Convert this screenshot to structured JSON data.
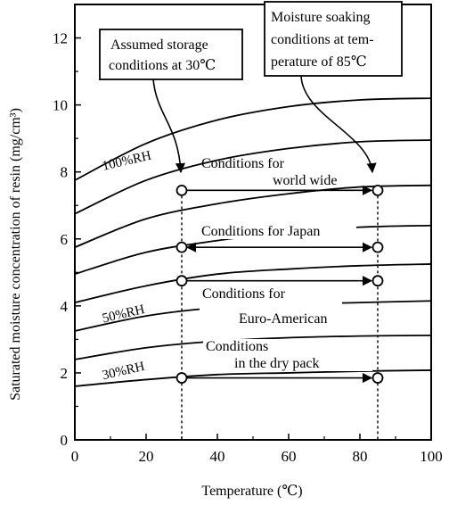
{
  "chart_data": {
    "type": "line",
    "title": "",
    "xlabel": "Temperature (℃)",
    "ylabel": "Saturated moisture concentration of resin (mg/cm³)",
    "xlim": [
      0,
      100
    ],
    "ylim": [
      0,
      13
    ],
    "xticks": [
      "0",
      "20",
      "40",
      "60",
      "80",
      "100"
    ],
    "yticks": [
      "0",
      "2",
      "4",
      "6",
      "8",
      "10",
      "12"
    ],
    "grid": false,
    "legend": "none",
    "x": [
      0,
      20,
      40,
      60,
      80,
      100
    ],
    "series": [
      {
        "name": "",
        "values": [
          7.75,
          8.85,
          9.55,
          9.95,
          10.15,
          10.2
        ]
      },
      {
        "name": "",
        "values": [
          6.75,
          7.75,
          8.35,
          8.7,
          8.9,
          8.95
        ]
      },
      {
        "name": "",
        "values": [
          5.75,
          6.6,
          7.05,
          7.35,
          7.55,
          7.6
        ]
      },
      {
        "name": "",
        "values": [
          4.95,
          5.6,
          5.95,
          6.2,
          6.35,
          6.4
        ]
      },
      {
        "name": "",
        "values": [
          4.1,
          4.6,
          4.95,
          5.1,
          5.2,
          5.25
        ]
      },
      {
        "name": "",
        "values": [
          3.25,
          3.7,
          3.95,
          4.05,
          4.1,
          4.15
        ]
      },
      {
        "name": "",
        "values": [
          2.4,
          2.75,
          2.95,
          3.05,
          3.1,
          3.12
        ]
      },
      {
        "name": "",
        "values": [
          1.6,
          1.8,
          1.95,
          2.0,
          2.05,
          2.08
        ]
      }
    ],
    "curve_labels": [
      {
        "text": "100%RH",
        "x": 8,
        "y": 8.05
      },
      {
        "text": "50%RH",
        "x": 8,
        "y": 3.5
      },
      {
        "text": "30%RH",
        "x": 8,
        "y": 1.8
      }
    ],
    "points": [
      {
        "x": 30,
        "y": 7.45
      },
      {
        "x": 85,
        "y": 7.45
      },
      {
        "x": 30,
        "y": 5.75
      },
      {
        "x": 85,
        "y": 5.75
      },
      {
        "x": 30,
        "y": 4.75
      },
      {
        "x": 85,
        "y": 4.75
      },
      {
        "x": 30,
        "y": 1.85
      },
      {
        "x": 85,
        "y": 1.85
      }
    ],
    "transitions": [
      {
        "from": [
          30,
          7.45
        ],
        "to": [
          85,
          7.45
        ]
      },
      {
        "from": [
          30,
          5.75
        ],
        "to": [
          85,
          5.75
        ],
        "bidirectional": true
      },
      {
        "from": [
          30,
          4.75
        ],
        "to": [
          85,
          4.75
        ]
      },
      {
        "from": [
          30,
          1.85
        ],
        "to": [
          85,
          1.85
        ]
      }
    ],
    "vertical_dashed_lines_x": [
      30,
      85
    ],
    "annotations": {
      "storage": [
        "Assumed storage",
        "conditions at 30℃"
      ],
      "soaking": [
        "Moisture soaking",
        "conditions at tem-",
        "perature of 85℃"
      ],
      "world": [
        "Conditions for",
        "world wide"
      ],
      "japan": [
        "Conditions for Japan"
      ],
      "euro": [
        "Conditions for",
        "Euro-American"
      ],
      "dry": [
        "Conditions",
        "in the dry pack"
      ]
    }
  }
}
